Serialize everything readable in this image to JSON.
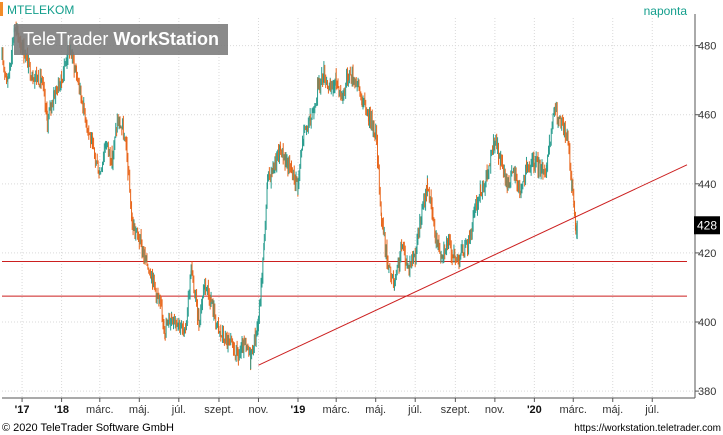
{
  "header": {
    "symbol": "MTELEKOM",
    "period": "naponta",
    "watermark_regular": "TeleTrader ",
    "watermark_bold": "WorkStation"
  },
  "footer": {
    "copyright": "© 2020 TeleTrader Software GmbH",
    "url": "https://workstation.teletrader.com"
  },
  "colors": {
    "up": "#2a9d8f",
    "down": "#e8651a",
    "line": "#cc1f1f",
    "grid": "#d9d9d9"
  },
  "chart_data": {
    "type": "line",
    "style": "candlestick",
    "ylim": [
      378,
      488
    ],
    "xlim": [
      "2017-10-01",
      "2020-09-05"
    ],
    "grid": true,
    "last_price": {
      "value": 428,
      "label": "428"
    },
    "y_ticks": [
      {
        "value": 380,
        "label": "380"
      },
      {
        "value": 400,
        "label": "400"
      },
      {
        "value": 420,
        "label": "420"
      },
      {
        "value": 440,
        "label": "440"
      },
      {
        "value": 460,
        "label": "460"
      },
      {
        "value": 480,
        "label": "480"
      }
    ],
    "x_ticks": [
      {
        "date": "2017-11-01",
        "label": "'17",
        "bold": true
      },
      {
        "date": "2018-01-01",
        "label": "'18",
        "bold": true
      },
      {
        "date": "2018-03-01",
        "label": "márc.",
        "bold": false
      },
      {
        "date": "2018-05-01",
        "label": "máj.",
        "bold": false
      },
      {
        "date": "2018-07-01",
        "label": "júl.",
        "bold": false
      },
      {
        "date": "2018-09-01",
        "label": "szept.",
        "bold": false
      },
      {
        "date": "2018-11-01",
        "label": "nov.",
        "bold": false
      },
      {
        "date": "2019-01-01",
        "label": "'19",
        "bold": true
      },
      {
        "date": "2019-03-01",
        "label": "márc.",
        "bold": false
      },
      {
        "date": "2019-05-01",
        "label": "máj.",
        "bold": false
      },
      {
        "date": "2019-07-01",
        "label": "júl.",
        "bold": false
      },
      {
        "date": "2019-09-01",
        "label": "szept.",
        "bold": false
      },
      {
        "date": "2019-11-01",
        "label": "nov.",
        "bold": false
      },
      {
        "date": "2020-01-01",
        "label": "'20",
        "bold": true
      },
      {
        "date": "2020-03-01",
        "label": "márc.",
        "bold": false
      },
      {
        "date": "2020-05-01",
        "label": "máj.",
        "bold": false
      },
      {
        "date": "2020-07-01",
        "label": "júl.",
        "bold": false
      }
    ],
    "horizontal_lines": [
      {
        "name": "support-418",
        "value": 417.5
      },
      {
        "name": "support-407",
        "value": 407.5
      }
    ],
    "trendline": {
      "start": [
        "2018-11-01",
        387.5
      ],
      "end": [
        "2020-09-05",
        445.5
      ]
    },
    "series": [
      {
        "points": [
          [
            "2017-10-01",
            476
          ],
          [
            "2017-10-10",
            470
          ],
          [
            "2017-10-20",
            485
          ],
          [
            "2017-11-01",
            480
          ],
          [
            "2017-11-15",
            472
          ],
          [
            "2017-12-01",
            470
          ],
          [
            "2017-12-10",
            458
          ],
          [
            "2017-12-20",
            466
          ],
          [
            "2018-01-01",
            470
          ],
          [
            "2018-01-12",
            480
          ],
          [
            "2018-01-24",
            472
          ],
          [
            "2018-02-05",
            461
          ],
          [
            "2018-02-18",
            450
          ],
          [
            "2018-03-01",
            443
          ],
          [
            "2018-03-10",
            452
          ],
          [
            "2018-03-20",
            447
          ],
          [
            "2018-03-28",
            458
          ],
          [
            "2018-04-05",
            456
          ],
          [
            "2018-04-12",
            448
          ],
          [
            "2018-04-20",
            428
          ],
          [
            "2018-05-01",
            424
          ],
          [
            "2018-05-10",
            418
          ],
          [
            "2018-05-20",
            414
          ],
          [
            "2018-06-01",
            405
          ],
          [
            "2018-06-10",
            398
          ],
          [
            "2018-06-20",
            402
          ],
          [
            "2018-07-01",
            400
          ],
          [
            "2018-07-10",
            396
          ],
          [
            "2018-07-20",
            415
          ],
          [
            "2018-08-01",
            400
          ],
          [
            "2018-08-10",
            412
          ],
          [
            "2018-08-20",
            406
          ],
          [
            "2018-09-01",
            397
          ],
          [
            "2018-09-15",
            394
          ],
          [
            "2018-10-01",
            390
          ],
          [
            "2018-10-10",
            393
          ],
          [
            "2018-10-20",
            390
          ],
          [
            "2018-11-01",
            400
          ],
          [
            "2018-11-05",
            410
          ],
          [
            "2018-11-10",
            424
          ],
          [
            "2018-11-15",
            441
          ],
          [
            "2018-11-25",
            445
          ],
          [
            "2018-12-05",
            450
          ],
          [
            "2018-12-15",
            446
          ],
          [
            "2019-01-01",
            440
          ],
          [
            "2019-01-10",
            455
          ],
          [
            "2019-01-20",
            458
          ],
          [
            "2019-02-01",
            468
          ],
          [
            "2019-02-10",
            472
          ],
          [
            "2019-02-20",
            467
          ],
          [
            "2019-03-01",
            470
          ],
          [
            "2019-03-10",
            465
          ],
          [
            "2019-03-20",
            472
          ],
          [
            "2019-04-01",
            470
          ],
          [
            "2019-04-10",
            464
          ],
          [
            "2019-04-20",
            460
          ],
          [
            "2019-05-01",
            455
          ],
          [
            "2019-05-10",
            430
          ],
          [
            "2019-05-20",
            416
          ],
          [
            "2019-05-30",
            410
          ],
          [
            "2019-06-10",
            422
          ],
          [
            "2019-06-20",
            416
          ],
          [
            "2019-07-01",
            420
          ],
          [
            "2019-07-10",
            430
          ],
          [
            "2019-07-20",
            440
          ],
          [
            "2019-08-01",
            425
          ],
          [
            "2019-08-10",
            420
          ],
          [
            "2019-08-20",
            423
          ],
          [
            "2019-09-01",
            418
          ],
          [
            "2019-09-10",
            420
          ],
          [
            "2019-09-20",
            422
          ],
          [
            "2019-10-01",
            432
          ],
          [
            "2019-10-10",
            438
          ],
          [
            "2019-10-20",
            442
          ],
          [
            "2019-11-01",
            453
          ],
          [
            "2019-11-10",
            446
          ],
          [
            "2019-11-20",
            440
          ],
          [
            "2019-12-01",
            443
          ],
          [
            "2019-12-10",
            438
          ],
          [
            "2019-12-20",
            444
          ],
          [
            "2020-01-01",
            446
          ],
          [
            "2020-01-10",
            445
          ],
          [
            "2020-01-20",
            444
          ],
          [
            "2020-02-01",
            462
          ],
          [
            "2020-02-08",
            458
          ],
          [
            "2020-02-15",
            456
          ],
          [
            "2020-02-22",
            452
          ],
          [
            "2020-02-28",
            440
          ],
          [
            "2020-03-03",
            432
          ],
          [
            "2020-03-05",
            425
          ],
          [
            "2020-03-07",
            428
          ]
        ]
      }
    ]
  }
}
